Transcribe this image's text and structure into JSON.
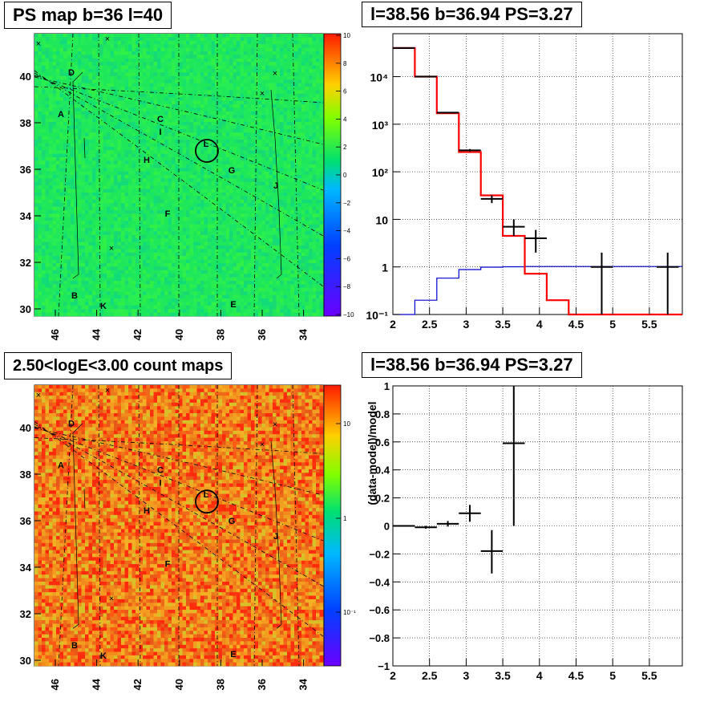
{
  "panels": {
    "map_tl_title": "PS map b=36 l=40",
    "spec_tr_title": "l=38.56 b=36.94 PS=3.27",
    "map_bl_title": "2.50<logE<3.00 count maps",
    "resid_br_title": "l=38.56 b=36.94 PS=3.27"
  },
  "colors": {
    "ps_map_bg": "#1ee85a",
    "count_map_bg": "#ee6a1a",
    "model_line": "#ff0000",
    "background_line": "#0000cc",
    "data_markers": "#000000"
  },
  "chart_data": [
    {
      "type": "heatmap",
      "title": "PS map b=36 l=40",
      "x_ticks": [
        "46",
        "44",
        "42",
        "40",
        "38",
        "36",
        "34"
      ],
      "y_ticks": [
        "40",
        "38",
        "36",
        "34",
        "32",
        "30"
      ],
      "colorbar": {
        "scale": "linear",
        "range": [
          -10,
          10
        ],
        "ticks": [
          "10",
          "8",
          "6",
          "4",
          "2",
          "0",
          "−2",
          "−4",
          "−6",
          "−8",
          "−10"
        ]
      },
      "source_labels": [
        "A",
        "B",
        "C",
        "D",
        "E",
        "F",
        "G",
        "H",
        "I",
        "J",
        "K",
        "L"
      ],
      "grid": "dashed galactic coordinate grid"
    },
    {
      "type": "line",
      "title": "l=38.56 b=36.94 PS=3.27",
      "y_scale": "log",
      "xlim": [
        2,
        5.95
      ],
      "ylim": [
        0.1,
        80000
      ],
      "x_ticks": [
        "2",
        "2.5",
        "3",
        "3.5",
        "4",
        "4.5",
        "5",
        "5.5"
      ],
      "y_ticks": [
        "10⁻¹",
        "1",
        "10",
        "10²",
        "10³",
        "10⁴"
      ],
      "grid": true,
      "model": {
        "bin_edges": [
          2.0,
          2.3,
          2.6,
          2.9,
          3.2,
          3.5,
          3.8,
          4.1,
          4.4,
          4.7,
          5.0,
          5.3,
          5.6,
          5.95
        ],
        "values": [
          40000,
          10000,
          1700,
          260,
          32,
          4.5,
          0.72,
          0.2,
          0.1,
          0.1,
          0.1,
          0.1,
          0.1
        ]
      },
      "background": {
        "bin_edges": [
          2.0,
          2.3,
          2.6,
          2.9,
          3.2,
          3.5,
          3.8,
          4.1,
          4.4,
          4.7,
          5.0,
          5.3,
          5.6,
          5.95
        ],
        "values": [
          0.04,
          0.2,
          0.58,
          0.88,
          0.99,
          1.01,
          1.02,
          1.02,
          1.02,
          1.02,
          1.02,
          1.02,
          1.02
        ]
      },
      "data": [
        {
          "x": 2.15,
          "xerr": 0.15,
          "y": 40000,
          "ylo": 39600,
          "yhi": 40400
        },
        {
          "x": 2.45,
          "xerr": 0.15,
          "y": 10000,
          "ylo": 9800,
          "yhi": 10200
        },
        {
          "x": 2.75,
          "xerr": 0.15,
          "y": 1750,
          "ylo": 1700,
          "yhi": 1800
        },
        {
          "x": 3.05,
          "xerr": 0.15,
          "y": 283,
          "ylo": 266,
          "yhi": 300
        },
        {
          "x": 3.35,
          "xerr": 0.15,
          "y": 27,
          "ylo": 22,
          "yhi": 32
        },
        {
          "x": 3.65,
          "xerr": 0.15,
          "y": 7,
          "ylo": 4.5,
          "yhi": 10
        },
        {
          "x": 3.95,
          "xerr": 0.15,
          "y": 4,
          "ylo": 2,
          "yhi": 6
        },
        {
          "x": 4.85,
          "xerr": 0.15,
          "y": 1,
          "ylo": 0.1,
          "yhi": 2
        },
        {
          "x": 5.75,
          "xerr": 0.15,
          "y": 1,
          "ylo": 0.1,
          "yhi": 2
        }
      ]
    },
    {
      "type": "heatmap",
      "title": "2.50<logE<3.00 count maps",
      "x_ticks": [
        "46",
        "44",
        "42",
        "40",
        "38",
        "36",
        "34"
      ],
      "y_ticks": [
        "40",
        "38",
        "36",
        "34",
        "32",
        "30"
      ],
      "colorbar": {
        "scale": "log",
        "range": [
          0.03,
          40
        ],
        "ticks": [
          "10",
          "1",
          "10⁻¹"
        ]
      },
      "source_labels": [
        "A",
        "B",
        "C",
        "D",
        "E",
        "F",
        "G",
        "H",
        "I",
        "J",
        "K",
        "L"
      ],
      "grid": "dashed galactic coordinate grid"
    },
    {
      "type": "scatter",
      "title": "l=38.56 b=36.94 PS=3.27",
      "ylabel": "(data-model)/model",
      "xlim": [
        2,
        5.95
      ],
      "ylim": [
        -1,
        1
      ],
      "x_ticks": [
        "2",
        "2.5",
        "3",
        "3.5",
        "4",
        "4.5",
        "5",
        "5.5"
      ],
      "y_ticks": [
        "−1",
        "−0.8",
        "−0.6",
        "−0.4",
        "−0.2",
        "0",
        "0.2",
        "0.4",
        "0.6",
        "0.8",
        "1"
      ],
      "grid": true,
      "data": [
        {
          "x": 2.15,
          "xerr": 0.15,
          "y": 0.0,
          "ylo": -0.005,
          "yhi": 0.005
        },
        {
          "x": 2.45,
          "xerr": 0.15,
          "y": -0.01,
          "ylo": -0.02,
          "yhi": 0.0
        },
        {
          "x": 2.75,
          "xerr": 0.15,
          "y": 0.015,
          "ylo": -0.005,
          "yhi": 0.035
        },
        {
          "x": 3.05,
          "xerr": 0.15,
          "y": 0.09,
          "ylo": 0.03,
          "yhi": 0.15
        },
        {
          "x": 3.35,
          "xerr": 0.15,
          "y": -0.18,
          "ylo": -0.34,
          "yhi": -0.03
        },
        {
          "x": 3.65,
          "xerr": 0.15,
          "y": 0.59,
          "ylo": 0.0,
          "yhi": 1.0
        }
      ]
    }
  ]
}
